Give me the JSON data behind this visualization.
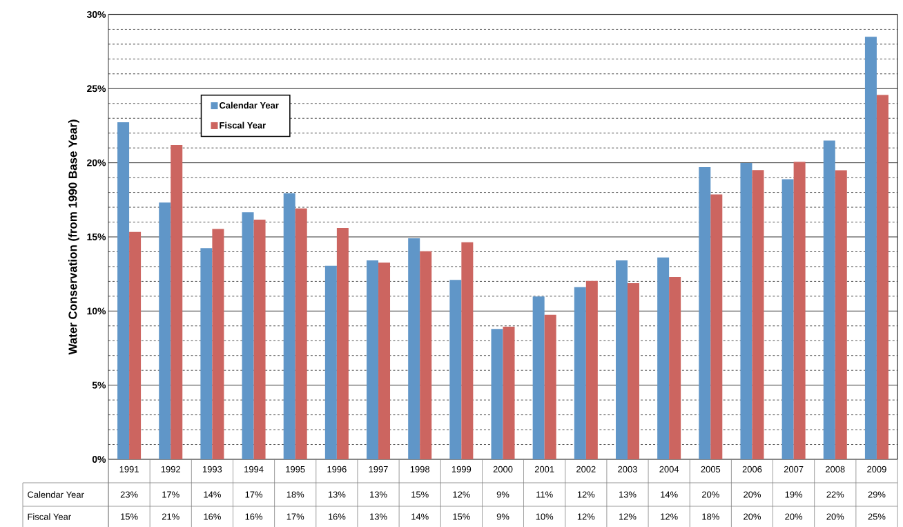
{
  "chart_data": {
    "type": "bar",
    "ylabel": "Water Conservation (from 1990 Base Year)",
    "categories": [
      "1991",
      "1992",
      "1993",
      "1994",
      "1995",
      "1996",
      "1997",
      "1998",
      "1999",
      "2000",
      "2001",
      "2002",
      "2003",
      "2004",
      "2005",
      "2006",
      "2007",
      "2008",
      "2009"
    ],
    "series": [
      {
        "name": "Calendar Year",
        "color": "#6096c8",
        "values": [
          22.73,
          17.32,
          14.24,
          16.66,
          17.95,
          13.06,
          13.41,
          14.91,
          12.1,
          8.79,
          10.98,
          11.61,
          13.41,
          13.61,
          19.7,
          19.98,
          18.89,
          21.5,
          28.5
        ],
        "value_labels": [
          "23%",
          "17%",
          "14%",
          "17%",
          "18%",
          "13%",
          "13%",
          "15%",
          "12%",
          "9%",
          "11%",
          "12%",
          "13%",
          "14%",
          "20%",
          "20%",
          "19%",
          "22%",
          "29%"
        ]
      },
      {
        "name": "Fiscal Year",
        "color": "#cc6560",
        "values": [
          15.34,
          21.2,
          15.54,
          16.16,
          16.92,
          15.61,
          13.26,
          14.03,
          14.64,
          8.94,
          9.75,
          12.03,
          11.88,
          12.3,
          17.87,
          19.51,
          20.06,
          19.5,
          24.57
        ],
        "value_labels": [
          "15%",
          "21%",
          "16%",
          "16%",
          "17%",
          "16%",
          "13%",
          "14%",
          "15%",
          "9%",
          "10%",
          "12%",
          "12%",
          "12%",
          "18%",
          "20%",
          "20%",
          "20%",
          "25%"
        ]
      }
    ],
    "ylim": [
      0,
      30
    ],
    "yticks": [
      {
        "value": 0,
        "label": "0%"
      },
      {
        "value": 5,
        "label": "5%"
      },
      {
        "value": 10,
        "label": "10%"
      },
      {
        "value": 15,
        "label": "15%"
      },
      {
        "value": 20,
        "label": "20%"
      },
      {
        "value": 25,
        "label": "25%"
      },
      {
        "value": 30,
        "label": "30%"
      }
    ],
    "grid": "y",
    "legend": "top left"
  }
}
